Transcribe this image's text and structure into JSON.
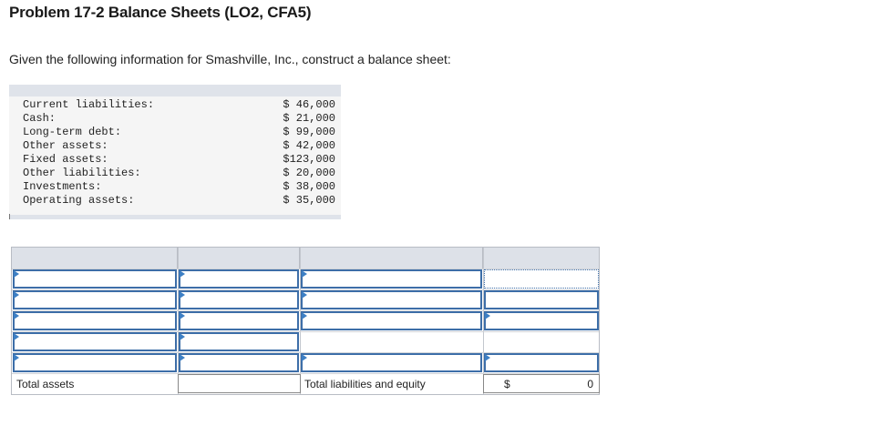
{
  "title": "Problem 17-2 Balance Sheets (LO2, CFA5)",
  "prompt": "Given the following information for Smashville, Inc., construct a balance sheet:",
  "given": [
    {
      "label": "Current liabilities:",
      "value": "$ 46,000"
    },
    {
      "label": "Cash:",
      "value": "$ 21,000"
    },
    {
      "label": "Long-term debt:",
      "value": "$ 99,000"
    },
    {
      "label": "Other assets:",
      "value": "$ 42,000"
    },
    {
      "label": "Fixed assets:",
      "value": "$123,000"
    },
    {
      "label": "Other liabilities:",
      "value": "$ 20,000"
    },
    {
      "label": "Investments:",
      "value": "$ 38,000"
    },
    {
      "label": "Operating assets:",
      "value": "$ 35,000"
    }
  ],
  "balance_sheet": {
    "total_assets_label": "Total assets",
    "total_liabilities_equity_label": "Total liabilities and equity",
    "total_currency": "$",
    "total_value": "0"
  }
}
